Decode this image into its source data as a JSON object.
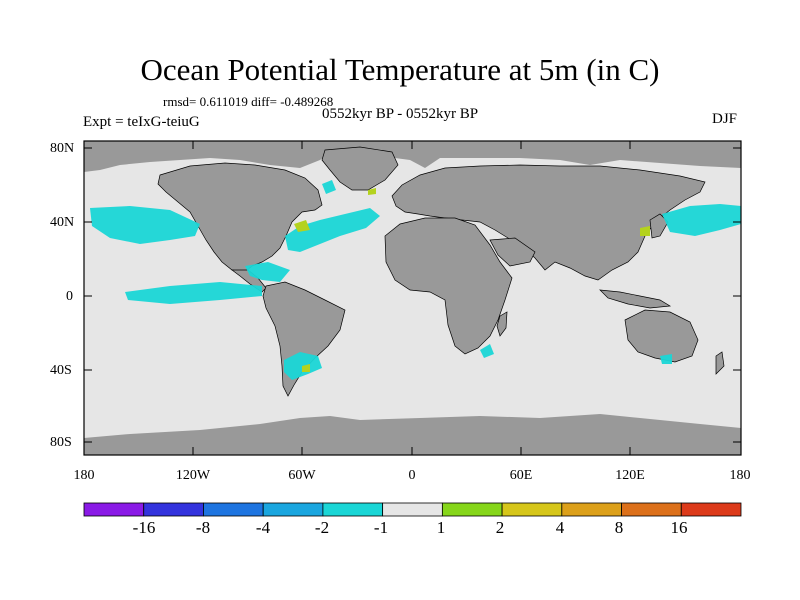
{
  "title": "Ocean Potential Temperature at 5m (in C)",
  "stats": "rmsd= 0.611019 diff= -0.489268",
  "expt": "Expt = teIxG-teiuG",
  "period": "0552kyr BP - 0552kyr BP",
  "season": "DJF",
  "lat_labels": [
    "80N",
    "40N",
    "0",
    "40S",
    "80S"
  ],
  "lon_labels": [
    "180",
    "120W",
    "60W",
    "0",
    "60E",
    "120E",
    "180"
  ],
  "colorbar": {
    "labels": [
      "-16",
      "-8",
      "-4",
      "-2",
      "-1",
      "1",
      "2",
      "4",
      "8",
      "16"
    ],
    "colors": [
      "#8a1ae6",
      "#3333dd",
      "#1e74e0",
      "#1aa6df",
      "#1ad6d6",
      "#e6e6e6",
      "#86d61a",
      "#d6c61a",
      "#dca01a",
      "#dc701a",
      "#dc3a1a"
    ]
  },
  "map_colors": {
    "ocean_neutral": "#e6e6e6",
    "land": "#999999",
    "cool_anomaly": "#1ad6d6",
    "warm_anomaly": "#b4d21e"
  }
}
